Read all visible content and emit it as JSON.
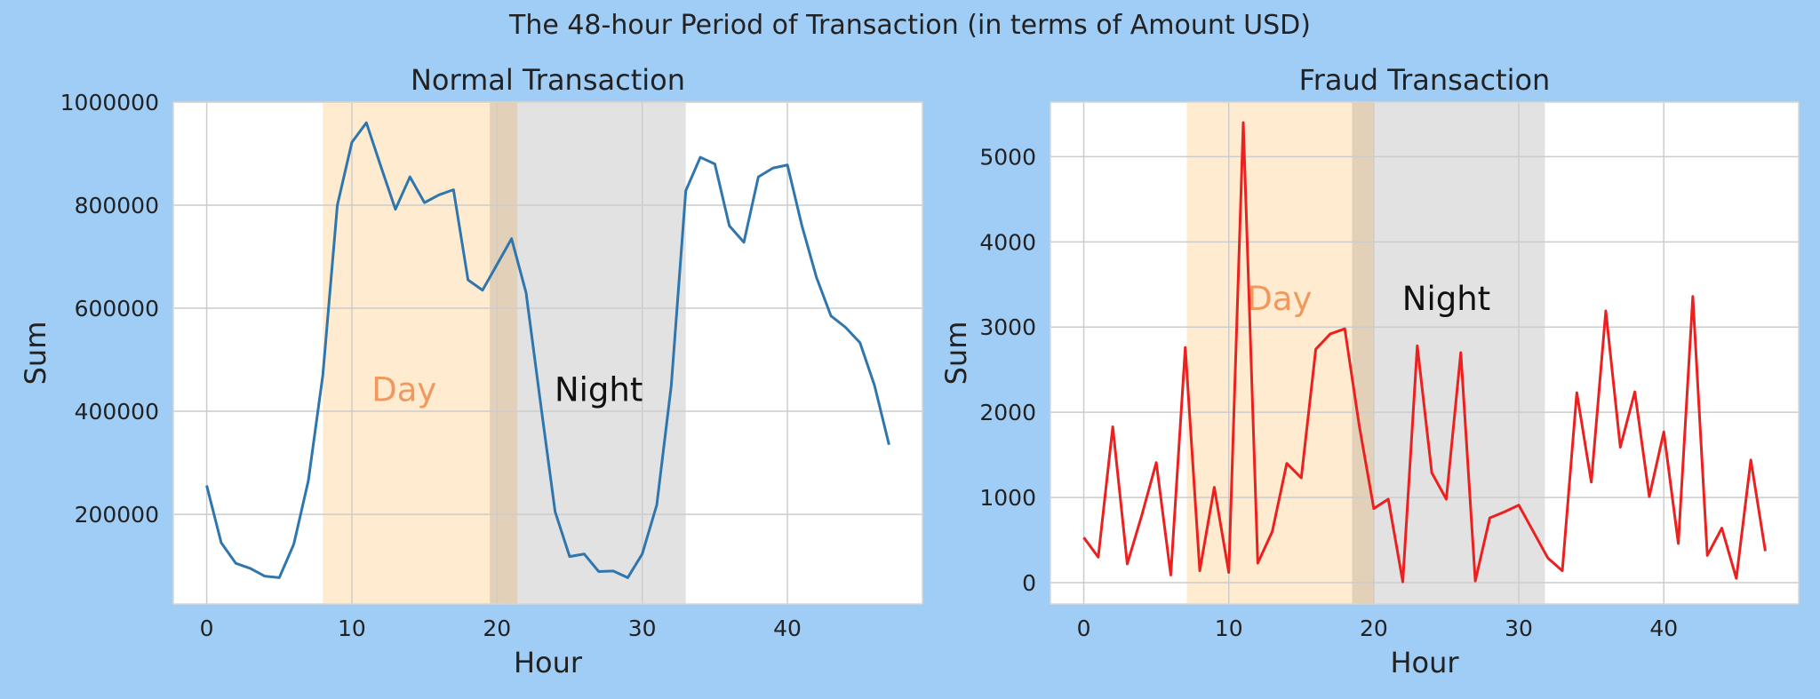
{
  "figure": {
    "suptitle": "The 48-hour Period of Transaction (in terms of Amount USD)",
    "background": "#a0cdf6"
  },
  "chart_data": [
    {
      "type": "line",
      "title": "Normal Transaction",
      "xlabel": "Hour",
      "ylabel": "Sum",
      "xlim": [
        -2.3,
        49.3
      ],
      "ylim": [
        26000,
        1000000
      ],
      "xticks": [
        0,
        10,
        20,
        30,
        40
      ],
      "yticks": [
        200000,
        400000,
        600000,
        800000,
        1000000
      ],
      "grid": true,
      "color": "#2e76ad",
      "x": [
        0,
        1,
        2,
        3,
        4,
        5,
        6,
        7,
        8,
        9,
        10,
        11,
        12,
        13,
        14,
        15,
        16,
        17,
        18,
        19,
        20,
        21,
        22,
        23,
        24,
        25,
        26,
        27,
        28,
        29,
        30,
        31,
        32,
        33,
        34,
        35,
        36,
        37,
        38,
        39,
        40,
        41,
        42,
        43,
        44,
        45,
        46,
        47
      ],
      "y": [
        256000,
        145000,
        105000,
        95000,
        80000,
        77000,
        142000,
        265000,
        470000,
        800000,
        922000,
        960000,
        875000,
        792000,
        855000,
        805000,
        820000,
        830000,
        655000,
        635000,
        685000,
        735000,
        630000,
        415000,
        205000,
        118000,
        123000,
        89000,
        90000,
        77000,
        123000,
        218000,
        450000,
        828000,
        893000,
        880000,
        760000,
        728000,
        855000,
        872000,
        878000,
        760000,
        660000,
        585000,
        563000,
        533000,
        450000,
        335000
      ],
      "shaded_regions": [
        {
          "label": "Day",
          "x0": 8,
          "x1": 21.4,
          "color": "#ffe9c8",
          "label_color": "#f0995e",
          "label_x": 13.6,
          "label_y": 420000
        },
        {
          "label": "Night",
          "x0": 19.5,
          "x1": 33,
          "color": "#dddddd",
          "label_color": "#111111",
          "label_x": 27,
          "label_y": 420000
        }
      ]
    },
    {
      "type": "line",
      "title": "Fraud Transaction",
      "xlabel": "Hour",
      "ylabel": "Sum",
      "xlim": [
        -2.3,
        49.3
      ],
      "ylim": [
        -250,
        5640
      ],
      "xticks": [
        0,
        10,
        20,
        30,
        40
      ],
      "yticks": [
        0,
        1000,
        2000,
        3000,
        4000,
        5000
      ],
      "grid": true,
      "color": "#ed2020",
      "x": [
        0,
        1,
        2,
        3,
        4,
        5,
        6,
        7,
        8,
        9,
        10,
        11,
        12,
        13,
        14,
        15,
        16,
        17,
        18,
        19,
        20,
        21,
        22,
        23,
        24,
        25,
        26,
        27,
        28,
        29,
        30,
        31,
        32,
        33,
        34,
        35,
        36,
        37,
        38,
        39,
        40,
        41,
        42,
        43,
        44,
        45,
        46,
        47
      ],
      "y": [
        530,
        300,
        1830,
        220,
        790,
        1410,
        90,
        2760,
        140,
        1120,
        120,
        5400,
        230,
        600,
        1400,
        1230,
        2740,
        2920,
        2980,
        1840,
        870,
        980,
        10,
        2780,
        1290,
        980,
        2700,
        20,
        760,
        830,
        910,
        600,
        290,
        140,
        2230,
        1180,
        3190,
        1590,
        2240,
        1010,
        1770,
        460,
        3360,
        320,
        640,
        50,
        1440,
        370
      ],
      "shaded_regions": [
        {
          "label": "Day",
          "x0": 7.1,
          "x1": 20,
          "color": "#ffe9c8",
          "label_color": "#f0995e",
          "label_x": 13.5,
          "label_y": 3200
        },
        {
          "label": "Night",
          "x0": 18.5,
          "x1": 31.8,
          "color": "#dddddd",
          "label_color": "#111111",
          "label_x": 25,
          "label_y": 3200
        }
      ]
    }
  ]
}
